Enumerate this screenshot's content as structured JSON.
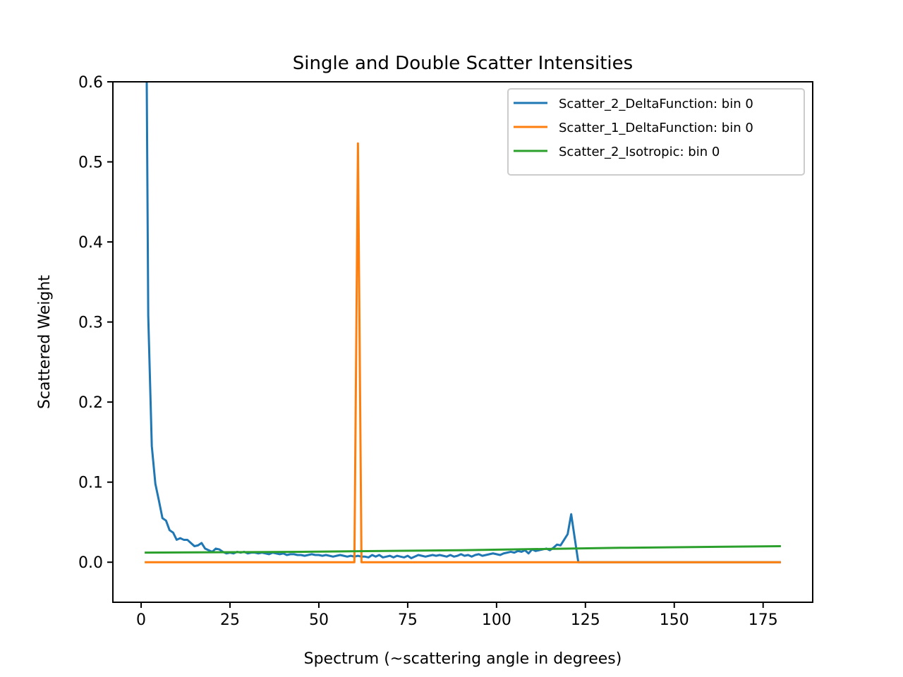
{
  "chart_data": {
    "type": "line",
    "title": "Single and Double Scatter Intensities",
    "x_label": "Spectrum (~scattering angle in degrees)",
    "y_label": "Scattered Weight",
    "xlim": [
      -7.95,
      188.95
    ],
    "ylim": [
      -0.05,
      0.6
    ],
    "xticks": [
      0,
      25,
      50,
      75,
      100,
      125,
      150,
      175
    ],
    "yticks": [
      {
        "value": 0,
        "label": "0.0"
      },
      0.1,
      0.2,
      0.3,
      0.4,
      0.5,
      0.6
    ],
    "grid": false,
    "legend": "upper right",
    "series": [
      {
        "name": "Scatter_2_DeltaFunction: bin 0",
        "color": "#1f77b4",
        "x": [
          1,
          2,
          3,
          4,
          5,
          6,
          7,
          8,
          9,
          10,
          11,
          12,
          13,
          14,
          15,
          16,
          17,
          18,
          19,
          20,
          21,
          22,
          23,
          24,
          25,
          26,
          27,
          28,
          29,
          30,
          31,
          32,
          33,
          34,
          35,
          36,
          37,
          38,
          39,
          40,
          41,
          42,
          43,
          44,
          45,
          46,
          47,
          48,
          49,
          50,
          51,
          52,
          53,
          54,
          55,
          56,
          57,
          58,
          59,
          60,
          61,
          62,
          63,
          64,
          65,
          66,
          67,
          68,
          69,
          70,
          71,
          72,
          73,
          74,
          75,
          76,
          77,
          78,
          79,
          80,
          81,
          82,
          83,
          84,
          85,
          86,
          87,
          88,
          89,
          90,
          91,
          92,
          93,
          94,
          95,
          96,
          97,
          98,
          99,
          100,
          101,
          102,
          103,
          104,
          105,
          106,
          107,
          108,
          109,
          110,
          111,
          112,
          113,
          114,
          115,
          116,
          117,
          118,
          119,
          120,
          121,
          122,
          123,
          124,
          180
        ],
        "values": [
          1.0,
          0.308,
          0.145,
          0.098,
          0.077,
          0.055,
          0.052,
          0.04,
          0.037,
          0.028,
          0.03,
          0.028,
          0.028,
          0.024,
          0.02,
          0.021,
          0.024,
          0.017,
          0.015,
          0.013,
          0.017,
          0.016,
          0.013,
          0.011,
          0.012,
          0.011,
          0.013,
          0.012,
          0.013,
          0.011,
          0.012,
          0.012,
          0.011,
          0.012,
          0.011,
          0.01,
          0.012,
          0.011,
          0.01,
          0.011,
          0.009,
          0.01,
          0.01,
          0.009,
          0.009,
          0.008,
          0.009,
          0.01,
          0.009,
          0.009,
          0.008,
          0.009,
          0.008,
          0.007,
          0.008,
          0.009,
          0.008,
          0.007,
          0.008,
          0.007,
          0.008,
          0.007,
          0.007,
          0.006,
          0.009,
          0.007,
          0.009,
          0.006,
          0.007,
          0.008,
          0.006,
          0.008,
          0.007,
          0.006,
          0.008,
          0.005,
          0.007,
          0.009,
          0.008,
          0.007,
          0.008,
          0.009,
          0.008,
          0.009,
          0.008,
          0.007,
          0.009,
          0.007,
          0.008,
          0.01,
          0.008,
          0.009,
          0.007,
          0.009,
          0.01,
          0.008,
          0.009,
          0.01,
          0.011,
          0.01,
          0.009,
          0.011,
          0.012,
          0.013,
          0.012,
          0.014,
          0.013,
          0.015,
          0.011,
          0.016,
          0.014,
          0.015,
          0.016,
          0.017,
          0.015,
          0.018,
          0.022,
          0.021,
          0.028,
          0.035,
          0.06,
          0.03,
          0,
          0,
          0
        ]
      },
      {
        "name": "Scatter_1_DeltaFunction: bin 0",
        "color": "#ff7f0e",
        "x": [
          1,
          60,
          61,
          62,
          180
        ],
        "values": [
          0,
          0,
          0.523,
          0,
          0
        ]
      },
      {
        "name": "Scatter_2_Isotropic: bin 0",
        "color": "#2ca02c",
        "x": [
          1,
          45,
          90,
          135,
          180
        ],
        "values": [
          0.012,
          0.013,
          0.015,
          0.018,
          0.02
        ]
      }
    ]
  }
}
